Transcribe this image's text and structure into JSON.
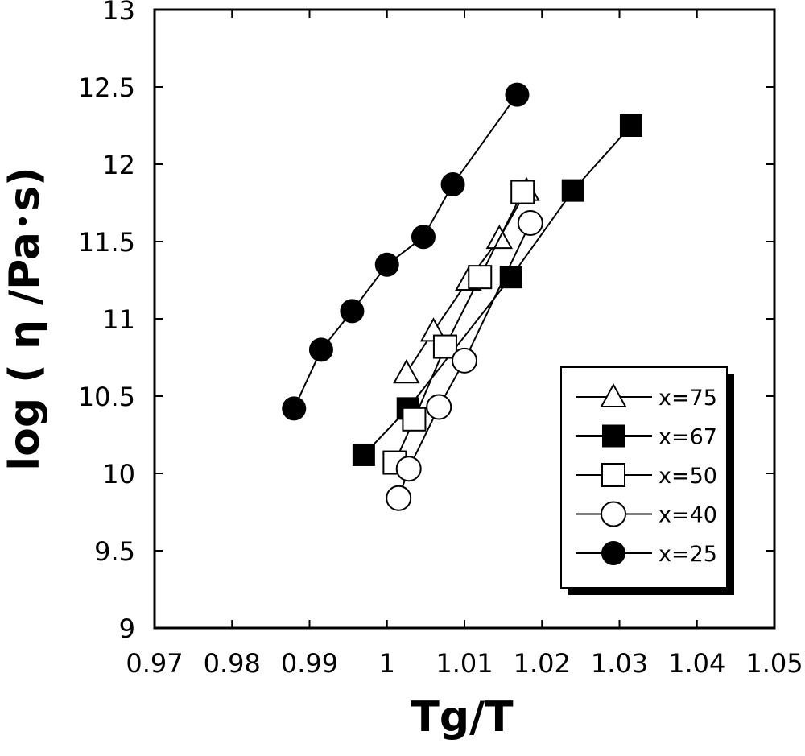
{
  "chart_data": {
    "type": "scatter",
    "title": "",
    "xlabel": "Tg/T",
    "ylabel": "log ( η /Pa･s)",
    "xlim": [
      0.97,
      1.05
    ],
    "ylim": [
      9,
      13
    ],
    "x_ticks": [
      0.97,
      0.98,
      0.99,
      1,
      1.01,
      1.02,
      1.03,
      1.04,
      1.05
    ],
    "x_tick_labels": [
      "0.97",
      "0.98",
      "0.99",
      "1",
      "1.01",
      "1.02",
      "1.03",
      "1.04",
      "1.05"
    ],
    "y_ticks": [
      9,
      9.5,
      10,
      10.5,
      11,
      11.5,
      12,
      12.5,
      13
    ],
    "y_tick_labels": [
      "9",
      "9.5",
      "10",
      "10.5",
      "11",
      "11.5",
      "12",
      "12.5",
      "13"
    ],
    "grid": false,
    "legend_position": "bottom-right",
    "series": [
      {
        "name": "x=75",
        "marker": "triangle-open",
        "points": [
          [
            1.0025,
            10.65
          ],
          [
            1.006,
            10.92
          ],
          [
            1.0105,
            11.25
          ],
          [
            1.0145,
            11.52
          ],
          [
            1.018,
            11.83
          ]
        ]
      },
      {
        "name": "x=67",
        "marker": "square-filled",
        "points": [
          [
            0.997,
            10.12
          ],
          [
            1.0027,
            10.42
          ],
          [
            1.016,
            11.27
          ],
          [
            1.024,
            11.83
          ],
          [
            1.0315,
            12.25
          ]
        ]
      },
      {
        "name": "x=50",
        "marker": "square-open",
        "points": [
          [
            1.001,
            10.07
          ],
          [
            1.0035,
            10.35
          ],
          [
            1.0075,
            10.82
          ],
          [
            1.012,
            11.27
          ],
          [
            1.0175,
            11.82
          ]
        ]
      },
      {
        "name": "x=40",
        "marker": "circle-open",
        "points": [
          [
            1.0015,
            9.84
          ],
          [
            1.0028,
            10.03
          ],
          [
            1.0067,
            10.43
          ],
          [
            1.01,
            10.73
          ],
          [
            1.0185,
            11.62
          ]
        ]
      },
      {
        "name": "x=25",
        "marker": "circle-filled",
        "points": [
          [
            0.988,
            10.42
          ],
          [
            0.9915,
            10.8
          ],
          [
            0.9955,
            11.05
          ],
          [
            1.0,
            11.35
          ],
          [
            1.0047,
            11.53
          ],
          [
            1.0085,
            11.87
          ],
          [
            1.0168,
            12.45
          ]
        ]
      }
    ]
  }
}
